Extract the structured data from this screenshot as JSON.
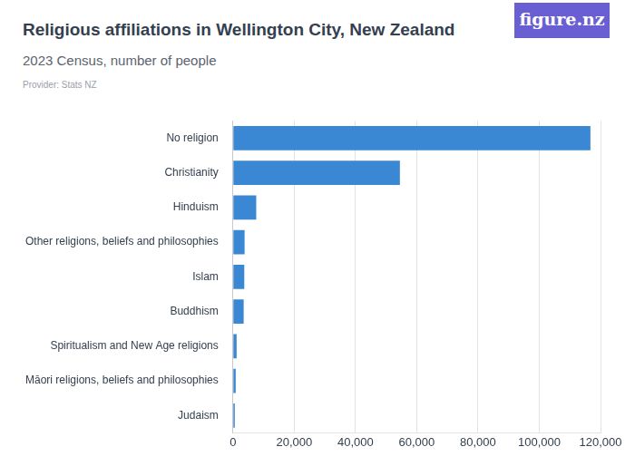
{
  "chart_data": {
    "type": "bar",
    "title": "Religious affiliations in Wellington City, New Zealand",
    "subtitle": "2023 Census, number of people",
    "source": "Provider: Stats NZ",
    "logo": "figure.nz",
    "orientation": "horizontal",
    "categories": [
      "No religion",
      "Christianity",
      "Hinduism",
      "Other religions, beliefs and philosophies",
      "Islam",
      "Buddhism",
      "Spiritualism and New Age religions",
      "Māori religions, beliefs and philosophies",
      "Judaism"
    ],
    "values": [
      116700,
      54500,
      7600,
      3800,
      3700,
      3500,
      1200,
      900,
      600
    ],
    "color": "#3a87d3",
    "xlim": [
      0,
      120000
    ],
    "xticks": [
      0,
      {
        "value": 20000,
        "label": "20,000"
      },
      {
        "value": 40000,
        "label": "40,000"
      },
      {
        "value": 60000,
        "label": "60,000"
      },
      {
        "value": 80000,
        "label": "80,000"
      },
      {
        "value": 100000,
        "label": "100,000"
      },
      {
        "value": 120000,
        "label": "120,000"
      }
    ],
    "grid": true
  }
}
